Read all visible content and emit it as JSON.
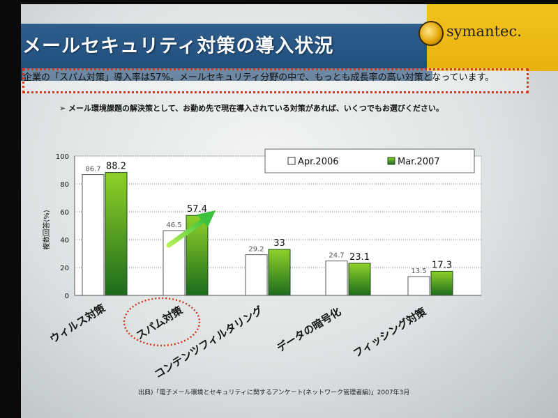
{
  "slide": {
    "title": "メールセキュリティ対策の導入状況",
    "callout": "企業の「スパム対策」導入率は57%。メールセキュリティ分野の中で、もっとも成長率の高い対策となっています。",
    "note": "メール環境課題の解決策として、お勤め先で現在導入されている対策があれば、いくつでもお選びください。",
    "source": "出典)「電子メール環境とセキュリティに関するアンケート(ネットワーク管理者編)」2007年3月",
    "logo": "symantec."
  },
  "colors": {
    "bar_apr": "#ffffff",
    "bar_mar_top": "#8fd12a",
    "bar_mar_bottom": "#1c6b1c",
    "callout_border": "#d0391f",
    "arrow": "#5fd23a",
    "title_band": "#23517f",
    "logo_panel": "#f2bd17"
  },
  "chart_data": {
    "type": "bar",
    "categories": [
      "ウィルス対策",
      "スパム対策",
      "コンテンツフィルタリング",
      "データの暗号化",
      "フィッシング対策"
    ],
    "series": [
      {
        "name": "Apr.2006",
        "values": [
          86.7,
          46.5,
          29.2,
          24.7,
          13.5
        ]
      },
      {
        "name": "Mar.2007",
        "values": [
          88.2,
          57.4,
          33,
          23.1,
          17.3
        ]
      }
    ],
    "ylabel": "複数回答(%)",
    "ylim": [
      0,
      100
    ],
    "yticks": [
      "0",
      "20",
      "40",
      "60",
      "80",
      "100"
    ],
    "data_labels": [
      [
        "86.7",
        "46.5",
        "29.2",
        "24.7",
        "13.5"
      ],
      [
        "88.2",
        "57.4",
        "33",
        "23.1",
        "17.3"
      ]
    ],
    "highlight_category": "スパム対策",
    "grid": true,
    "legend": "top-right"
  }
}
